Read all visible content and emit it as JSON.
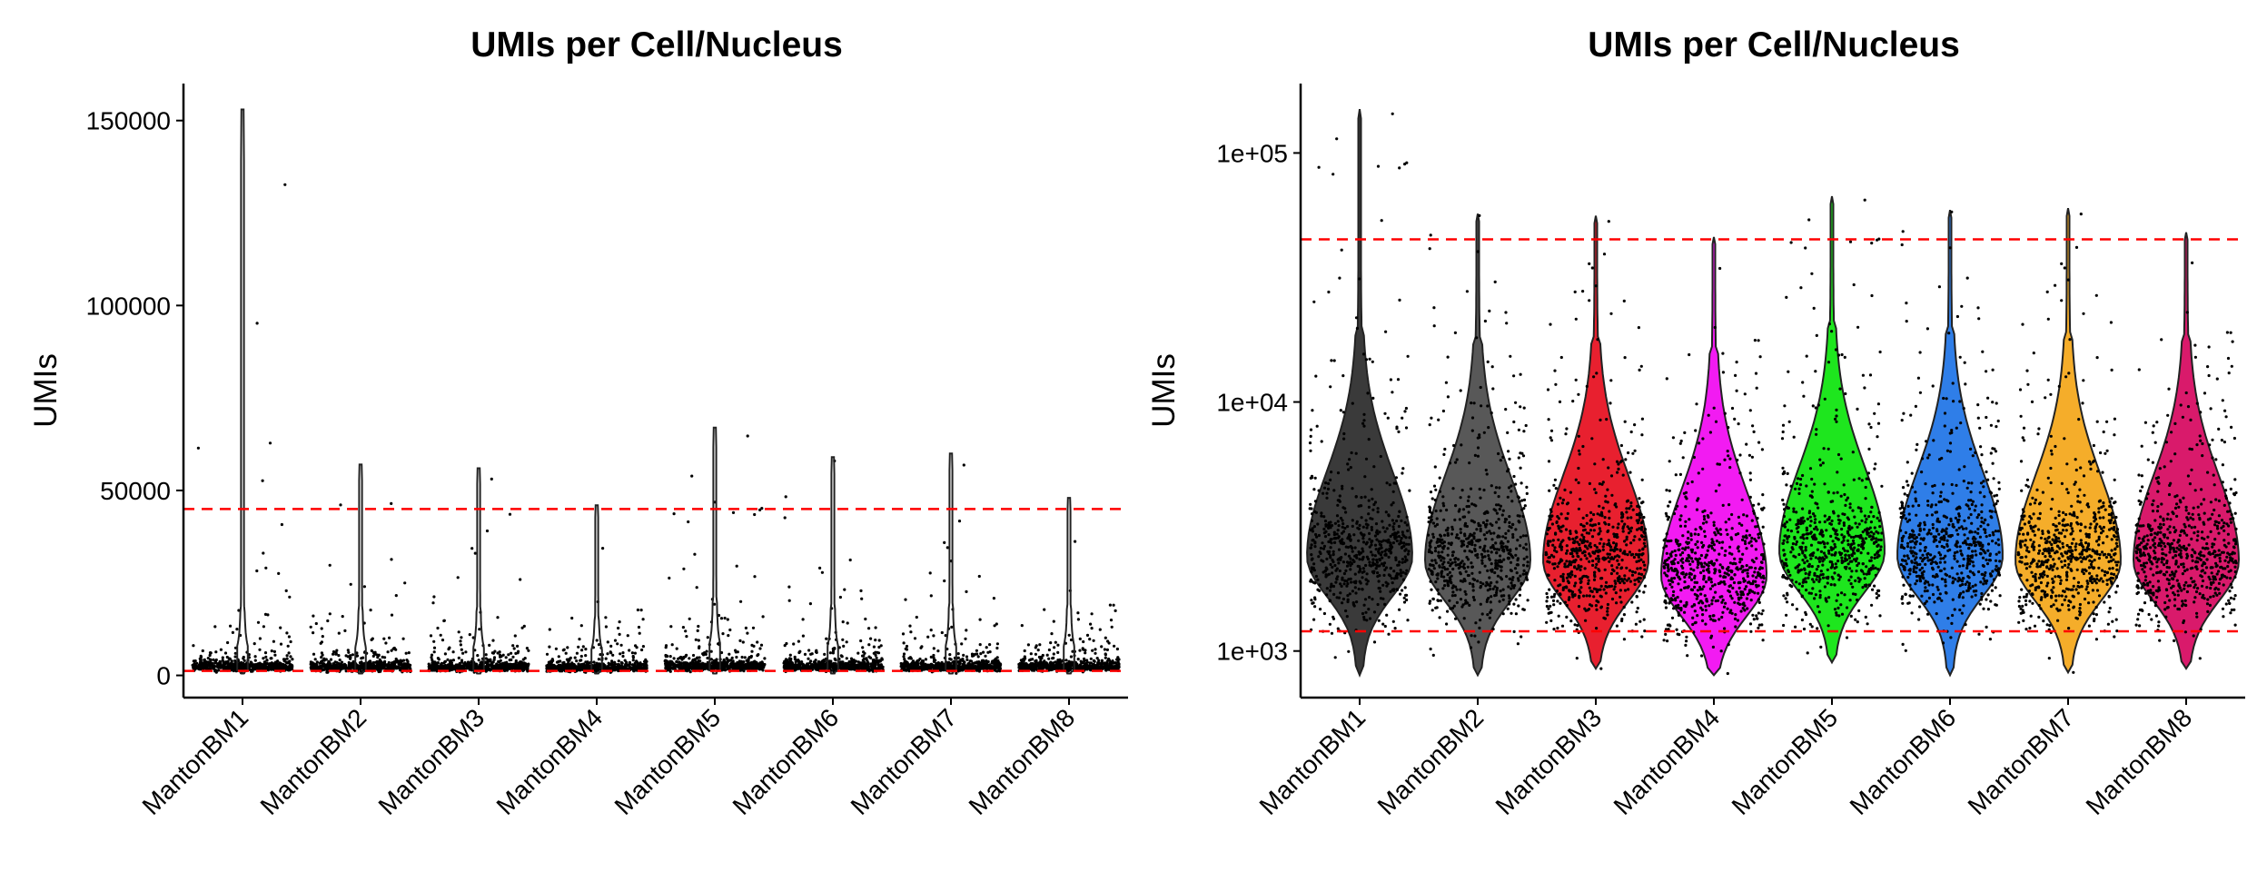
{
  "chart_data": [
    {
      "type": "violin",
      "title": "UMIs per Cell/Nucleus",
      "xlabel": "",
      "ylabel": "UMIs",
      "y_scale": "linear",
      "ylim": [
        -6000,
        160000
      ],
      "y_ticks": [
        0,
        50000,
        100000,
        150000
      ],
      "y_tick_labels": [
        "0",
        "50000",
        "100000",
        "150000"
      ],
      "categories": [
        "MantonBM1",
        "MantonBM2",
        "MantonBM3",
        "MantonBM4",
        "MantonBM5",
        "MantonBM6",
        "MantonBM7",
        "MantonBM8"
      ],
      "violin_fill": false,
      "jitter_points": true,
      "max_values": [
        153000,
        57000,
        56000,
        46000,
        67000,
        59000,
        60000,
        48000
      ],
      "min_values": [
        500,
        500,
        500,
        500,
        500,
        500,
        500,
        500
      ],
      "median_values": [
        2300,
        2200,
        2200,
        2000,
        2500,
        2300,
        2300,
        2300
      ],
      "threshold_lines": [
        45000,
        1200
      ],
      "threshold_color": "#ff0000"
    },
    {
      "type": "violin",
      "title": "UMIs per Cell/Nucleus",
      "xlabel": "",
      "ylabel": "UMIs",
      "y_scale": "log10",
      "ylim": [
        650,
        190000
      ],
      "y_ticks": [
        1000,
        10000,
        100000
      ],
      "y_tick_labels": [
        "1e+03",
        "1e+04",
        "1e+05"
      ],
      "categories": [
        "MantonBM1",
        "MantonBM2",
        "MantonBM3",
        "MantonBM4",
        "MantonBM5",
        "MantonBM6",
        "MantonBM7",
        "MantonBM8"
      ],
      "violin_fill": true,
      "jitter_points": true,
      "series_colors": [
        "#3a3a3a",
        "#585858",
        "#e8202f",
        "#f21bf2",
        "#1ee61e",
        "#2f7ee8",
        "#f5ad2a",
        "#d91a6b"
      ],
      "max_values": [
        150000,
        57000,
        56000,
        46000,
        67000,
        59000,
        60000,
        48000
      ],
      "min_values": [
        800,
        800,
        850,
        800,
        900,
        800,
        820,
        850
      ],
      "median_values": [
        2400,
        2300,
        2300,
        2000,
        2500,
        2400,
        2300,
        2300
      ],
      "threshold_lines": [
        45000,
        1200
      ],
      "threshold_color": "#ff0000"
    }
  ]
}
